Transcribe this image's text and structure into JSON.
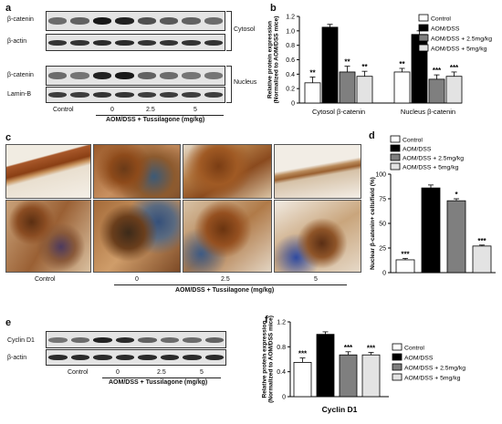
{
  "panels": {
    "a": {
      "label": "a",
      "blot_labels": [
        "β-catenin",
        "β-actin",
        "β-catenin",
        "Lamin-B"
      ],
      "side_labels": [
        "Cytosol",
        "Nucleus"
      ],
      "lanes": [
        "Control",
        "0",
        "2.5",
        "5"
      ],
      "treatment": "AOM/DSS + Tussilagone (mg/kg)"
    },
    "b": {
      "label": "b"
    },
    "c": {
      "label": "c",
      "lanes": [
        "Control",
        "0",
        "2.5",
        "5"
      ],
      "treatment": "AOM/DSS + Tussilagone (mg/kg)"
    },
    "d": {
      "label": "d"
    },
    "e": {
      "label": "e",
      "blot_labels": [
        "Cyclin D1",
        "β-actin"
      ],
      "lanes": [
        "Control",
        "0",
        "2.5",
        "5"
      ],
      "treatment": "AOM/DSS + Tussilagone (mg/kg)"
    },
    "f": {
      "label": "f"
    }
  },
  "legend": [
    "Control",
    "AOM/DSS",
    "AOM/DSS + 2.5mg/kg",
    "AOM/DSS + 5mg/kg"
  ],
  "colors": {
    "control": "#ffffff",
    "aomdss": "#000000",
    "low": "#7f7f7f",
    "high": "#e3e3e3"
  },
  "chart_data": [
    {
      "panel": "b",
      "type": "bar",
      "ylabel": "Relative protein expression\n(Normalized to AOM/DSS mice)",
      "ylim": [
        0,
        1.2
      ],
      "yticks": [
        "0",
        "0.2",
        "0.4",
        "0.6",
        "0.8",
        "1.0",
        "1.2"
      ],
      "categories": [
        "Cytosol β-catenin",
        "Nucleus β-catenin"
      ],
      "series": [
        {
          "name": "Control",
          "values": [
            0.28,
            0.43
          ],
          "errors": [
            0.08,
            0.05
          ],
          "sig": [
            "**",
            "**"
          ]
        },
        {
          "name": "AOM/DSS",
          "values": [
            1.05,
            0.95
          ],
          "errors": [
            0.04,
            0.05
          ],
          "sig": [
            "",
            ""
          ]
        },
        {
          "name": "AOM/DSS + 2.5mg/kg",
          "values": [
            0.43,
            0.33
          ],
          "errors": [
            0.08,
            0.06
          ],
          "sig": [
            "**",
            "***"
          ]
        },
        {
          "name": "AOM/DSS + 5mg/kg",
          "values": [
            0.37,
            0.37
          ],
          "errors": [
            0.07,
            0.06
          ],
          "sig": [
            "**",
            "***"
          ]
        }
      ]
    },
    {
      "panel": "d",
      "type": "bar",
      "ylabel": "Nuclear β-catenin+ cells/field (%)",
      "ylim": [
        0,
        100
      ],
      "yticks": [
        "0",
        "25",
        "50",
        "75",
        "100"
      ],
      "categories": [
        "Control",
        "AOM/DSS",
        "AOM/DSS + 2.5mg/kg",
        "AOM/DSS + 5mg/kg"
      ],
      "values": [
        13,
        86,
        73,
        27
      ],
      "errors": [
        1.5,
        3,
        2,
        1
      ],
      "sig": [
        "***",
        "",
        "*",
        "***"
      ]
    },
    {
      "panel": "f",
      "type": "bar",
      "ylabel": "Relative protein expression\n(Normalized to AOM/DSS mice)",
      "xlabel": "Cyclin D1",
      "ylim": [
        0,
        1.2
      ],
      "yticks": [
        "0",
        "0.4",
        "0.8",
        "1.2"
      ],
      "categories": [
        "Control",
        "AOM/DSS",
        "AOM/DSS + 2.5mg/kg",
        "AOM/DSS + 5mg/kg"
      ],
      "values": [
        0.55,
        1.0,
        0.67,
        0.67
      ],
      "errors": [
        0.07,
        0.04,
        0.05,
        0.04
      ],
      "sig": [
        "***",
        "",
        "***",
        "***"
      ]
    }
  ]
}
